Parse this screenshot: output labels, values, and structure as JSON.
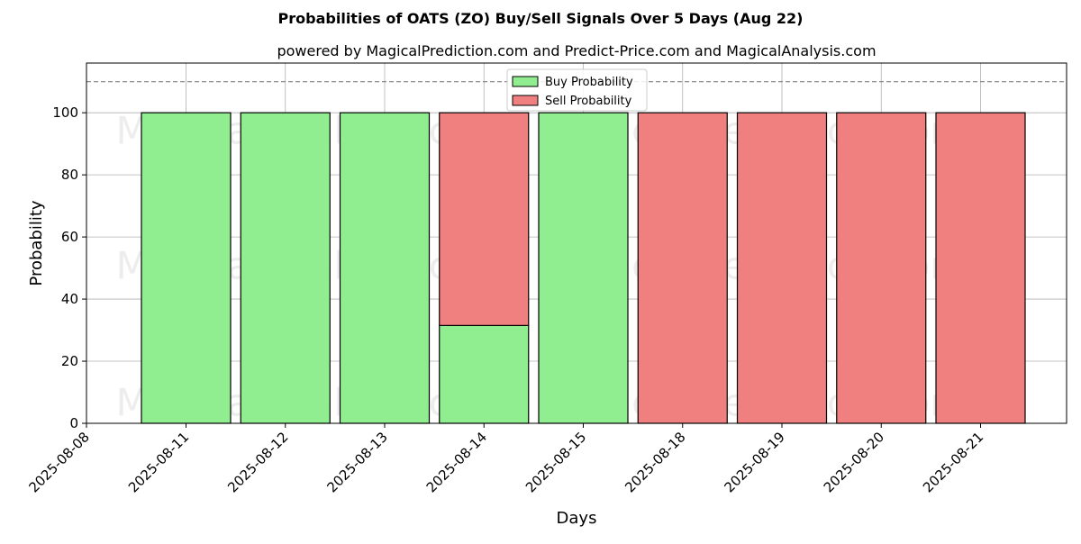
{
  "chart_data": {
    "type": "bar",
    "title": "Probabilities of OATS (ZO) Buy/Sell Signals Over 5 Days (Aug 22)",
    "subtitle": "powered by MagicalPrediction.com and Predict-Price.com and MagicalAnalysis.com",
    "xlabel": "Days",
    "ylabel": "Probability",
    "ylim": [
      0,
      116
    ],
    "yticks": [
      0,
      20,
      40,
      60,
      80,
      100
    ],
    "xticks": [
      "2025-08-08",
      "2025-08-11",
      "2025-08-12",
      "2025-08-13",
      "2025-08-14",
      "2025-08-15",
      "2025-08-18",
      "2025-08-19",
      "2025-08-20",
      "2025-08-21"
    ],
    "categories": [
      "2025-08-11",
      "2025-08-12",
      "2025-08-13",
      "2025-08-14",
      "2025-08-15",
      "2025-08-18",
      "2025-08-19",
      "2025-08-20",
      "2025-08-21"
    ],
    "stacked": true,
    "series": [
      {
        "name": "Buy Probability",
        "color": "#90ee90",
        "values": [
          100,
          100,
          100,
          31.5,
          100,
          0,
          0,
          0,
          0
        ]
      },
      {
        "name": "Sell Probability",
        "color": "#f08080",
        "values": [
          0,
          0,
          0,
          68.5,
          0,
          100,
          100,
          100,
          100
        ]
      }
    ],
    "reference_line": {
      "y": 110,
      "style": "dashed"
    },
    "grid": true,
    "legend_position": "top-center",
    "watermarks": [
      "MagicalAnalysis.com",
      "MagicalPrediction.com"
    ]
  }
}
